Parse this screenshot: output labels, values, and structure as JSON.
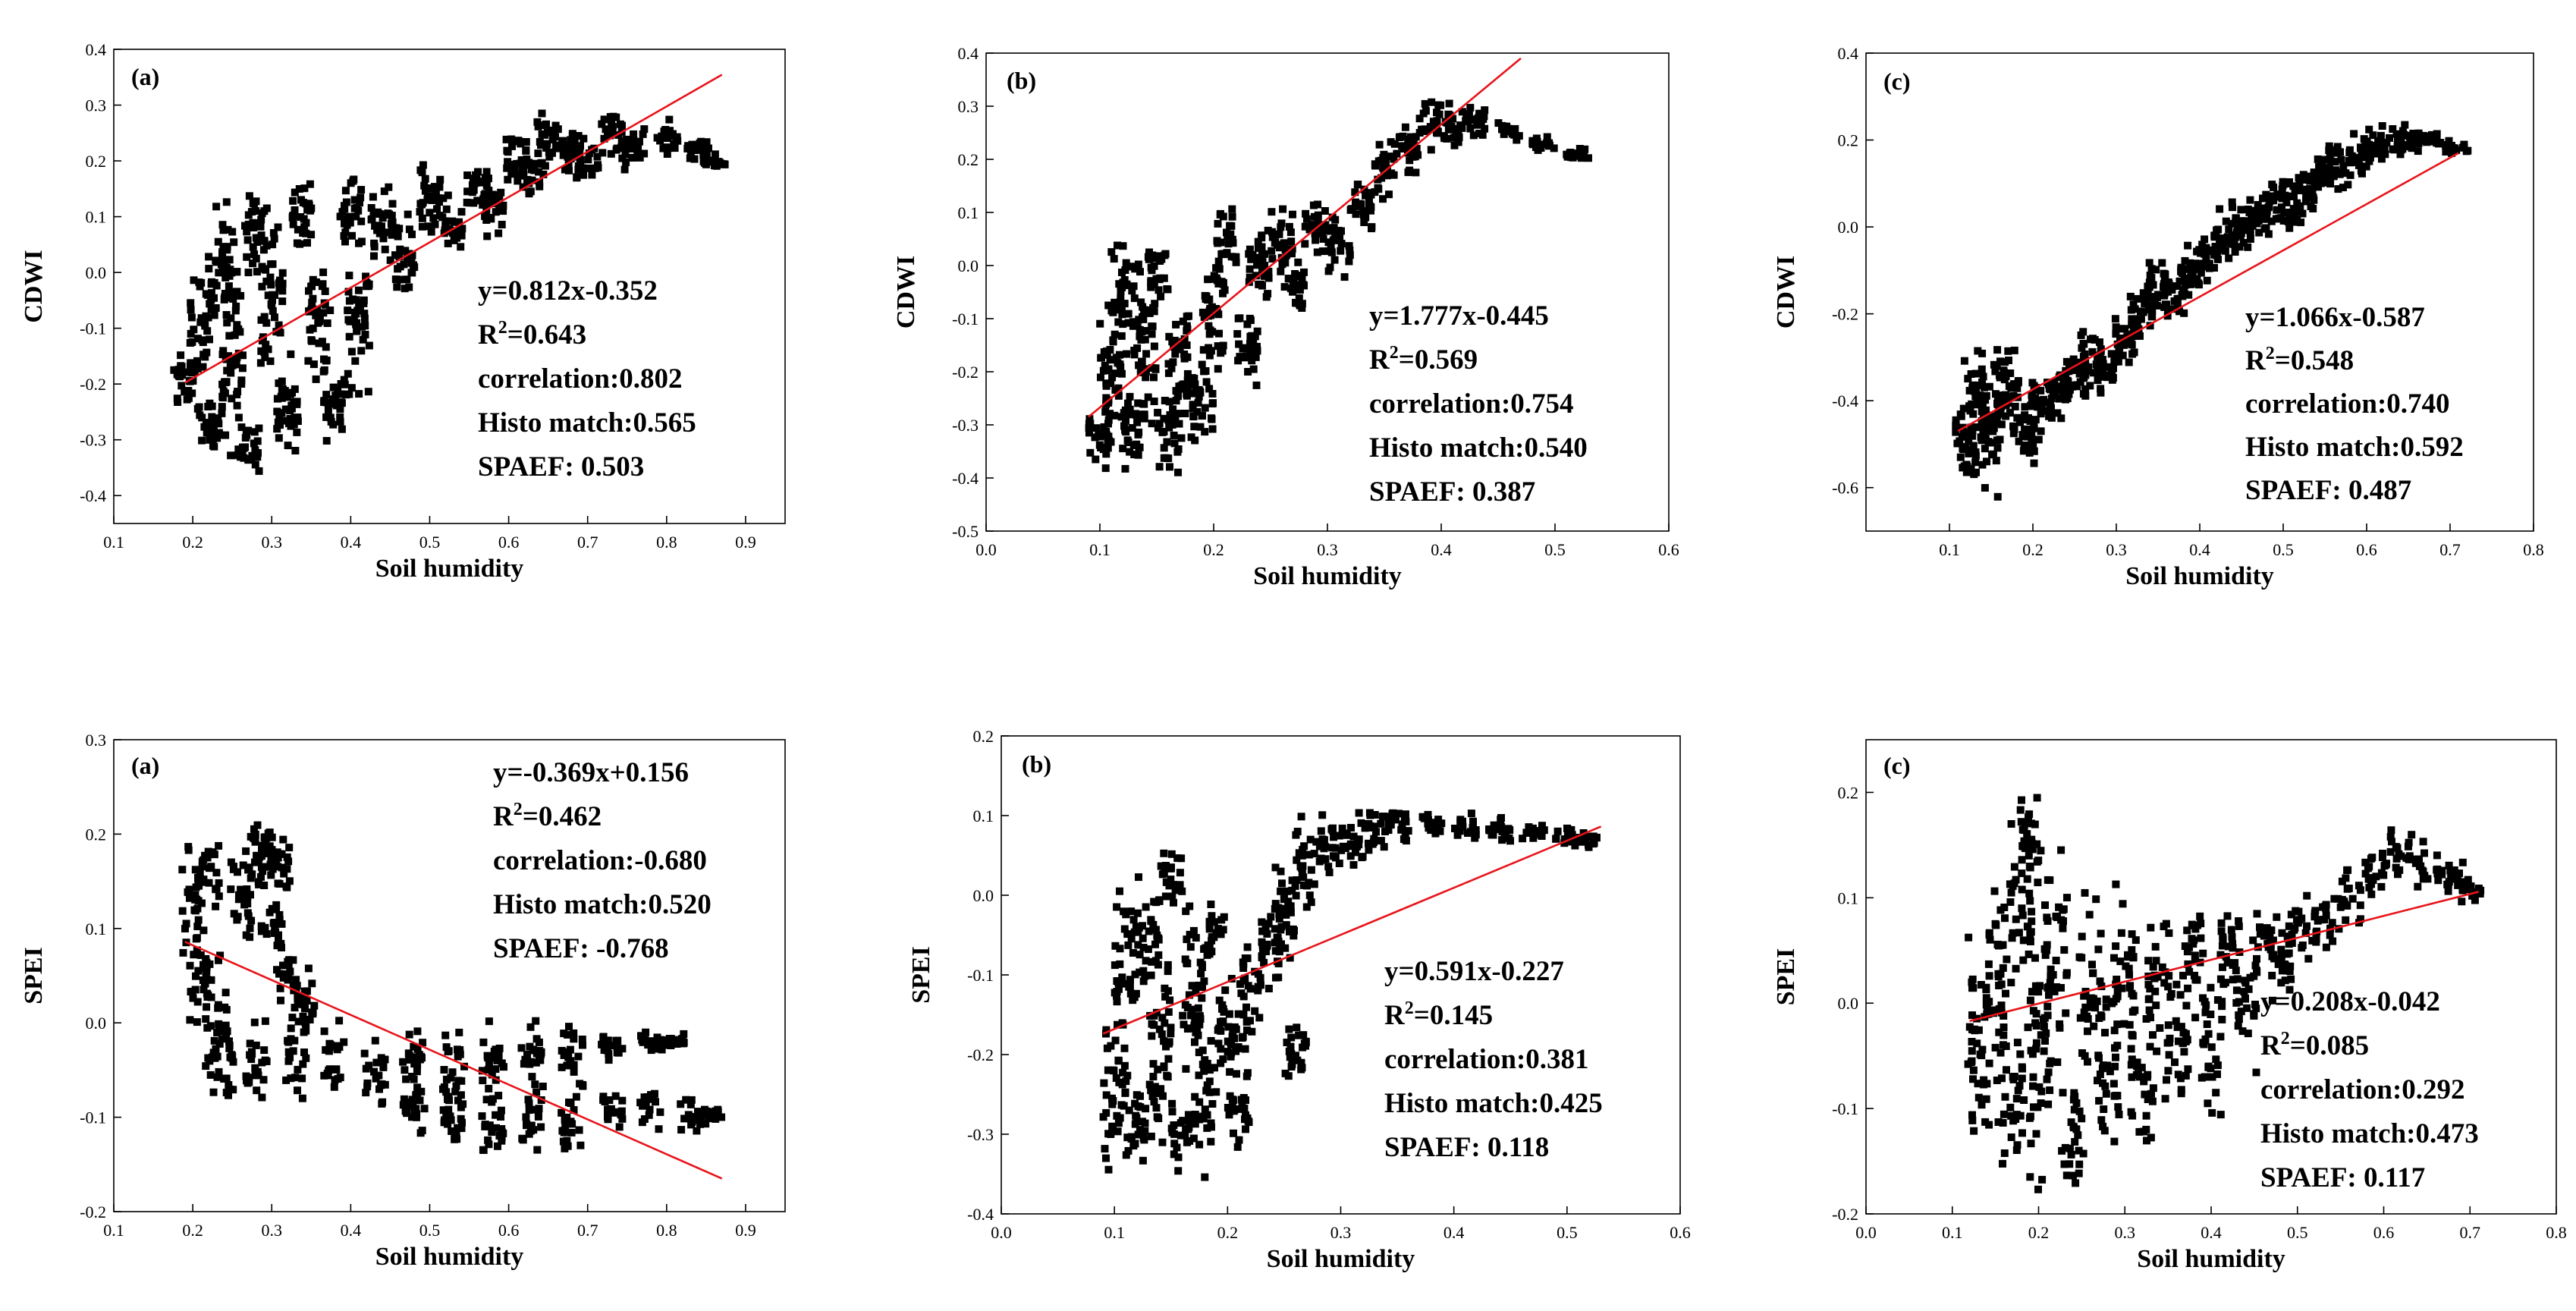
{
  "chart_data": [
    {
      "type": "scatter",
      "panel": "(a)",
      "xlabel": "Soil humidity",
      "ylabel": "CDWI",
      "xlim": [
        0.1,
        0.95
      ],
      "ylim": [
        -0.45,
        0.4
      ],
      "xticks": [
        "0.1",
        "0.2",
        "0.3",
        "0.4",
        "0.5",
        "0.6",
        "0.7",
        "0.8",
        "0.9"
      ],
      "yticks": [
        "-0.4",
        "-0.3",
        "-0.2",
        "-0.1",
        "0.0",
        "0.1",
        "0.2",
        "0.3",
        "0.4"
      ],
      "point_color": "#000000",
      "fit": {
        "slope": 0.812,
        "intercept": -0.352,
        "x_range": [
          0.19,
          0.87
        ],
        "color": "#e8141a"
      },
      "stats": [
        "y=0.812x-0.352",
        "R²=0.643",
        "correlation:0.802",
        "Histo match:0.565",
        "SPAEF: 0.503"
      ],
      "points": [
        [
          0.19,
          -0.18,
          0.05
        ],
        [
          0.21,
          -0.08,
          0.1
        ],
        [
          0.22,
          -0.28,
          0.06
        ],
        [
          0.24,
          0.02,
          0.09
        ],
        [
          0.25,
          -0.15,
          0.16
        ],
        [
          0.27,
          -0.31,
          0.05
        ],
        [
          0.28,
          0.06,
          0.07
        ],
        [
          0.3,
          -0.05,
          0.14
        ],
        [
          0.32,
          -0.25,
          0.08
        ],
        [
          0.34,
          0.1,
          0.06
        ],
        [
          0.36,
          -0.08,
          0.1
        ],
        [
          0.38,
          -0.24,
          0.06
        ],
        [
          0.4,
          0.1,
          0.06
        ],
        [
          0.41,
          -0.1,
          0.12
        ],
        [
          0.44,
          0.09,
          0.07
        ],
        [
          0.47,
          0.03,
          0.06
        ],
        [
          0.5,
          0.13,
          0.06
        ],
        [
          0.53,
          0.09,
          0.05
        ],
        [
          0.56,
          0.16,
          0.05
        ],
        [
          0.58,
          0.12,
          0.05
        ],
        [
          0.61,
          0.2,
          0.05
        ],
        [
          0.63,
          0.17,
          0.04
        ],
        [
          0.65,
          0.24,
          0.05
        ],
        [
          0.68,
          0.22,
          0.04
        ],
        [
          0.7,
          0.2,
          0.04
        ],
        [
          0.73,
          0.25,
          0.04
        ],
        [
          0.76,
          0.22,
          0.03
        ],
        [
          0.8,
          0.24,
          0.03
        ],
        [
          0.84,
          0.22,
          0.02
        ],
        [
          0.86,
          0.2,
          0.015
        ]
      ]
    },
    {
      "type": "scatter",
      "panel": "(b)",
      "xlabel": "Soil humidity",
      "ylabel": "CDWI",
      "xlim": [
        0.0,
        0.6
      ],
      "ylim": [
        -0.5,
        0.4
      ],
      "xticks": [
        "0.0",
        "0.1",
        "0.2",
        "0.3",
        "0.4",
        "0.5",
        "0.6"
      ],
      "yticks": [
        "-0.5",
        "-0.4",
        "-0.3",
        "-0.2",
        "-0.1",
        "0.0",
        "0.1",
        "0.2",
        "0.3",
        "0.4"
      ],
      "point_color": "#000000",
      "fit": {
        "slope": 1.777,
        "intercept": -0.445,
        "x_range": [
          0.09,
          0.47
        ],
        "color": "#e8141a"
      },
      "stats": [
        "y=1.777x-0.445",
        "R²=0.569",
        "correlation:0.754",
        "Histo match:0.540",
        "SPAEF: 0.387"
      ],
      "points": [
        [
          0.1,
          -0.33,
          0.05
        ],
        [
          0.11,
          -0.2,
          0.1
        ],
        [
          0.12,
          -0.05,
          0.09
        ],
        [
          0.13,
          -0.3,
          0.08
        ],
        [
          0.14,
          -0.15,
          0.14
        ],
        [
          0.15,
          0.0,
          0.05
        ],
        [
          0.16,
          -0.3,
          0.07
        ],
        [
          0.17,
          -0.18,
          0.12
        ],
        [
          0.19,
          -0.26,
          0.08
        ],
        [
          0.2,
          -0.1,
          0.1
        ],
        [
          0.21,
          0.03,
          0.07
        ],
        [
          0.23,
          -0.15,
          0.07
        ],
        [
          0.24,
          0.0,
          0.08
        ],
        [
          0.26,
          0.04,
          0.06
        ],
        [
          0.27,
          -0.04,
          0.05
        ],
        [
          0.29,
          0.07,
          0.05
        ],
        [
          0.31,
          0.04,
          0.05
        ],
        [
          0.33,
          0.12,
          0.05
        ],
        [
          0.35,
          0.18,
          0.05
        ],
        [
          0.37,
          0.22,
          0.05
        ],
        [
          0.39,
          0.27,
          0.04
        ],
        [
          0.41,
          0.26,
          0.04
        ],
        [
          0.43,
          0.27,
          0.03
        ],
        [
          0.46,
          0.25,
          0.02
        ],
        [
          0.49,
          0.23,
          0.015
        ],
        [
          0.52,
          0.21,
          0.01
        ]
      ]
    },
    {
      "type": "scatter",
      "panel": "(c)",
      "xlabel": "Soil humidity",
      "ylabel": "CDWI",
      "xlim": [
        0.0,
        0.8
      ],
      "ylim": [
        -0.7,
        0.4
      ],
      "xticks": [
        "0.1",
        "0.2",
        "0.3",
        "0.4",
        "0.5",
        "0.6",
        "0.7",
        "0.8"
      ],
      "yticks": [
        "-0.6",
        "-0.4",
        "-0.2",
        "0.0",
        "0.2",
        "0.4"
      ],
      "point_color": "#000000",
      "fit": {
        "slope": 1.066,
        "intercept": -0.587,
        "x_range": [
          0.11,
          0.71
        ],
        "color": "#e8141a"
      },
      "stats": [
        "y=1.066x-0.587",
        "R²=0.548",
        "correlation:0.740",
        "Histo match:0.592",
        "SPAEF: 0.487"
      ],
      "points": [
        [
          0.12,
          -0.5,
          0.09
        ],
        [
          0.13,
          -0.38,
          0.09
        ],
        [
          0.15,
          -0.45,
          0.14
        ],
        [
          0.17,
          -0.36,
          0.09
        ],
        [
          0.19,
          -0.48,
          0.06
        ],
        [
          0.21,
          -0.42,
          0.06
        ],
        [
          0.23,
          -0.38,
          0.06
        ],
        [
          0.25,
          -0.35,
          0.06
        ],
        [
          0.27,
          -0.3,
          0.06
        ],
        [
          0.29,
          -0.32,
          0.06
        ],
        [
          0.31,
          -0.26,
          0.06
        ],
        [
          0.33,
          -0.2,
          0.06
        ],
        [
          0.35,
          -0.14,
          0.06
        ],
        [
          0.37,
          -0.16,
          0.05
        ],
        [
          0.39,
          -0.1,
          0.06
        ],
        [
          0.41,
          -0.08,
          0.05
        ],
        [
          0.43,
          -0.03,
          0.06
        ],
        [
          0.45,
          0.0,
          0.05
        ],
        [
          0.47,
          0.02,
          0.05
        ],
        [
          0.49,
          0.06,
          0.05
        ],
        [
          0.51,
          0.05,
          0.05
        ],
        [
          0.53,
          0.1,
          0.05
        ],
        [
          0.55,
          0.14,
          0.05
        ],
        [
          0.57,
          0.13,
          0.04
        ],
        [
          0.59,
          0.17,
          0.04
        ],
        [
          0.61,
          0.18,
          0.04
        ],
        [
          0.63,
          0.2,
          0.03
        ],
        [
          0.65,
          0.2,
          0.03
        ],
        [
          0.67,
          0.2,
          0.02
        ],
        [
          0.69,
          0.19,
          0.02
        ],
        [
          0.71,
          0.18,
          0.01
        ]
      ]
    },
    {
      "type": "scatter",
      "panel": "(a)",
      "xlabel": "Soil humidity",
      "ylabel": "SPEI",
      "xlim": [
        0.1,
        0.95
      ],
      "ylim": [
        -0.2,
        0.3
      ],
      "xticks": [
        "0.1",
        "0.2",
        "0.3",
        "0.4",
        "0.5",
        "0.6",
        "0.7",
        "0.8",
        "0.9"
      ],
      "yticks": [
        "-0.2",
        "-0.1",
        "0.0",
        "0.1",
        "0.2",
        "0.3"
      ],
      "point_color": "#000000",
      "fit": {
        "slope": -0.369,
        "intercept": 0.156,
        "x_range": [
          0.19,
          0.87
        ],
        "color": "#e8141a"
      },
      "stats": [
        "y=-0.369x+0.156",
        "R²=0.462",
        "correlation:-0.680",
        "Histo match:0.520",
        "SPAEF: -0.768"
      ],
      "points": [
        [
          0.2,
          0.12,
          0.05
        ],
        [
          0.21,
          0.05,
          0.06
        ],
        [
          0.22,
          0.16,
          0.04
        ],
        [
          0.23,
          0.0,
          0.06
        ],
        [
          0.24,
          -0.04,
          0.04
        ],
        [
          0.26,
          0.13,
          0.04
        ],
        [
          0.28,
          0.17,
          0.04
        ],
        [
          0.29,
          0.19,
          0.03
        ],
        [
          0.31,
          0.17,
          0.03
        ],
        [
          0.3,
          0.1,
          0.03
        ],
        [
          0.32,
          0.05,
          0.03
        ],
        [
          0.34,
          0.02,
          0.03
        ],
        [
          0.28,
          -0.04,
          0.04
        ],
        [
          0.33,
          -0.04,
          0.04
        ],
        [
          0.38,
          -0.04,
          0.03
        ],
        [
          0.43,
          -0.05,
          0.03
        ],
        [
          0.48,
          -0.04,
          0.03
        ],
        [
          0.53,
          -0.05,
          0.04
        ],
        [
          0.58,
          -0.04,
          0.04
        ],
        [
          0.63,
          -0.035,
          0.03
        ],
        [
          0.68,
          -0.03,
          0.03
        ],
        [
          0.73,
          -0.025,
          0.015
        ],
        [
          0.78,
          -0.02,
          0.01
        ],
        [
          0.81,
          -0.02,
          0.008
        ],
        [
          0.48,
          -0.09,
          0.03
        ],
        [
          0.53,
          -0.1,
          0.03
        ],
        [
          0.58,
          -0.11,
          0.03
        ],
        [
          0.63,
          -0.1,
          0.03
        ],
        [
          0.68,
          -0.1,
          0.03
        ],
        [
          0.73,
          -0.09,
          0.02
        ],
        [
          0.78,
          -0.09,
          0.02
        ],
        [
          0.83,
          -0.1,
          0.015
        ],
        [
          0.86,
          -0.1,
          0.01
        ]
      ]
    },
    {
      "type": "scatter",
      "panel": "(b)",
      "xlabel": "Soil humidity",
      "ylabel": "SPEI",
      "xlim": [
        0.0,
        0.6
      ],
      "ylim": [
        -0.4,
        0.2
      ],
      "xticks": [
        "0.0",
        "0.1",
        "0.2",
        "0.3",
        "0.4",
        "0.5",
        "0.6"
      ],
      "yticks": [
        "-0.4",
        "-0.3",
        "-0.2",
        "-0.1",
        "0.0",
        "0.1",
        "0.2"
      ],
      "point_color": "#000000",
      "fit": {
        "slope": 0.591,
        "intercept": -0.227,
        "x_range": [
          0.09,
          0.53
        ],
        "color": "#e8141a"
      },
      "stats": [
        "y=0.591x-0.227",
        "R²=0.145",
        "correlation:0.381",
        "Histo match:0.425",
        "SPAEF: 0.118"
      ],
      "points": [
        [
          0.1,
          -0.22,
          0.1
        ],
        [
          0.11,
          -0.08,
          0.08
        ],
        [
          0.12,
          -0.28,
          0.05
        ],
        [
          0.13,
          -0.05,
          0.08
        ],
        [
          0.14,
          -0.2,
          0.12
        ],
        [
          0.15,
          0.03,
          0.04
        ],
        [
          0.16,
          -0.3,
          0.04
        ],
        [
          0.17,
          -0.12,
          0.1
        ],
        [
          0.18,
          -0.25,
          0.08
        ],
        [
          0.19,
          -0.05,
          0.04
        ],
        [
          0.2,
          -0.18,
          0.08
        ],
        [
          0.21,
          -0.27,
          0.05
        ],
        [
          0.22,
          -0.12,
          0.06
        ],
        [
          0.24,
          -0.06,
          0.06
        ],
        [
          0.25,
          -0.02,
          0.06
        ],
        [
          0.26,
          -0.2,
          0.04
        ],
        [
          0.27,
          0.04,
          0.05
        ],
        [
          0.29,
          0.06,
          0.04
        ],
        [
          0.31,
          0.07,
          0.03
        ],
        [
          0.33,
          0.085,
          0.025
        ],
        [
          0.35,
          0.09,
          0.02
        ],
        [
          0.38,
          0.09,
          0.015
        ],
        [
          0.41,
          0.085,
          0.015
        ],
        [
          0.44,
          0.08,
          0.015
        ],
        [
          0.47,
          0.08,
          0.01
        ],
        [
          0.5,
          0.075,
          0.01
        ],
        [
          0.52,
          0.07,
          0.008
        ]
      ]
    },
    {
      "type": "scatter",
      "panel": "(c)",
      "xlabel": "Soil humidity",
      "ylabel": "SPEI",
      "xlim": [
        0.0,
        0.8
      ],
      "ylim": [
        -0.2,
        0.25
      ],
      "xticks": [
        "0.0",
        "0.1",
        "0.2",
        "0.3",
        "0.4",
        "0.5",
        "0.6",
        "0.7",
        "0.8"
      ],
      "yticks": [
        "-0.2",
        "-0.1",
        "0.0",
        "0.1",
        "0.2"
      ],
      "point_color": "#000000",
      "fit": {
        "slope": 0.208,
        "intercept": -0.042,
        "x_range": [
          0.12,
          0.71
        ],
        "color": "#e8141a"
      },
      "stats": [
        "y=0.208x-0.042",
        "R²=0.085",
        "correlation:0.292",
        "Histo match:0.473",
        "SPAEF: 0.117"
      ],
      "points": [
        [
          0.13,
          -0.05,
          0.1
        ],
        [
          0.15,
          0.02,
          0.12
        ],
        [
          0.17,
          -0.1,
          0.06
        ],
        [
          0.18,
          0.1,
          0.08
        ],
        [
          0.19,
          0.15,
          0.04
        ],
        [
          0.2,
          -0.05,
          0.11
        ],
        [
          0.22,
          0.03,
          0.1
        ],
        [
          0.24,
          -0.12,
          0.05
        ],
        [
          0.26,
          0.02,
          0.08
        ],
        [
          0.28,
          -0.06,
          0.08
        ],
        [
          0.3,
          0.03,
          0.07
        ],
        [
          0.32,
          -0.08,
          0.06
        ],
        [
          0.34,
          0.03,
          0.06
        ],
        [
          0.36,
          -0.04,
          0.07
        ],
        [
          0.38,
          0.04,
          0.05
        ],
        [
          0.4,
          -0.03,
          0.06
        ],
        [
          0.42,
          0.05,
          0.04
        ],
        [
          0.44,
          0.0,
          0.05
        ],
        [
          0.46,
          0.06,
          0.03
        ],
        [
          0.48,
          0.04,
          0.04
        ],
        [
          0.5,
          0.07,
          0.03
        ],
        [
          0.53,
          0.08,
          0.03
        ],
        [
          0.56,
          0.1,
          0.03
        ],
        [
          0.59,
          0.13,
          0.025
        ],
        [
          0.62,
          0.14,
          0.02
        ],
        [
          0.65,
          0.13,
          0.02
        ],
        [
          0.68,
          0.12,
          0.015
        ],
        [
          0.7,
          0.105,
          0.01
        ]
      ]
    }
  ]
}
